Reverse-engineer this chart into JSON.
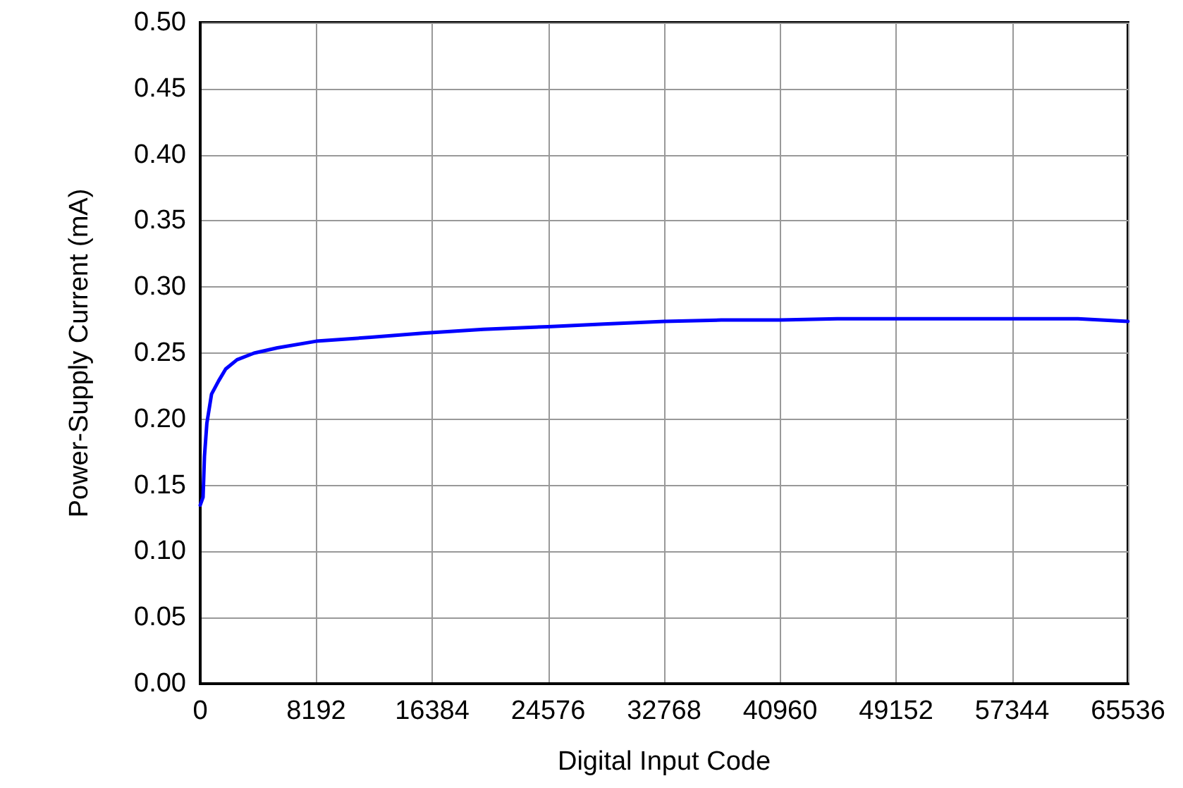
{
  "chart_data": {
    "type": "line",
    "xlabel": "Digital Input Code",
    "ylabel": "Power-Supply Current (mA)",
    "x": [
      0,
      200,
      300,
      470,
      800,
      1300,
      1800,
      2600,
      3800,
      5450,
      8192,
      12050,
      15700,
      20000,
      24576,
      28500,
      32768,
      36800,
      40960,
      45000,
      49152,
      53000,
      57344,
      62000,
      65535
    ],
    "series": [
      {
        "color": "#0000ff",
        "values": [
          0.135,
          0.141,
          0.172,
          0.197,
          0.219,
          0.229,
          0.238,
          0.245,
          0.25,
          0.254,
          0.259,
          0.262,
          0.265,
          0.268,
          0.27,
          0.272,
          0.274,
          0.275,
          0.275,
          0.276,
          0.276,
          0.276,
          0.276,
          0.276,
          0.274
        ]
      }
    ],
    "xlim": [
      0,
      65536
    ],
    "xticks": [
      0,
      8192,
      16384,
      24576,
      32768,
      40960,
      49152,
      57344,
      65536
    ],
    "ylim": [
      0,
      0.5
    ],
    "yticks": [
      {
        "value": 0,
        "label": "0.00"
      },
      {
        "value": 0.05,
        "label": "0.05"
      },
      {
        "value": 0.1,
        "label": "0.10"
      },
      {
        "value": 0.15,
        "label": "0.15"
      },
      {
        "value": 0.2,
        "label": "0.20"
      },
      {
        "value": 0.25,
        "label": "0.25"
      },
      {
        "value": 0.3,
        "label": "0.30"
      },
      {
        "value": 0.35,
        "label": "0.35"
      },
      {
        "value": 0.4,
        "label": "0.40"
      },
      {
        "value": 0.45,
        "label": "0.45"
      },
      {
        "value": 0.5,
        "label": "0.50"
      }
    ],
    "grid": true,
    "marker": "none",
    "line_style": "solid"
  }
}
